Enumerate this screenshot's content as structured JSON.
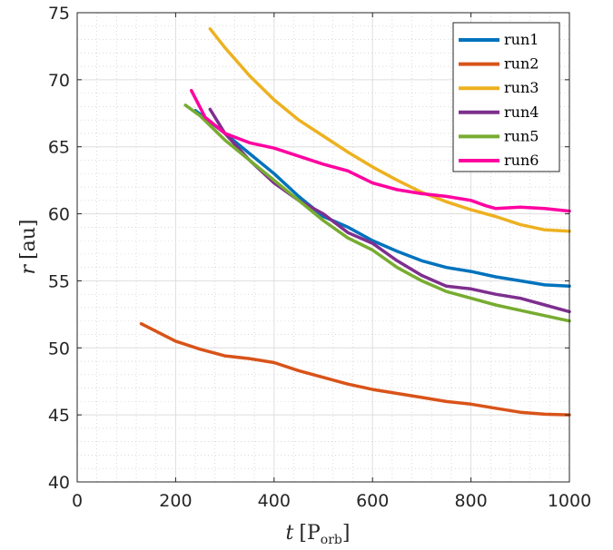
{
  "chart_data": {
    "type": "line",
    "xlabel": {
      "var": "t",
      "unit_main": "P",
      "unit_sub": "orb"
    },
    "ylabel": {
      "var": "r",
      "unit": "au"
    },
    "xlim": [
      0,
      1000
    ],
    "ylim": [
      40,
      75
    ],
    "xticks": [
      0,
      200,
      400,
      600,
      800,
      1000
    ],
    "yticks": [
      40,
      45,
      50,
      55,
      60,
      65,
      70,
      75
    ],
    "grid": "on",
    "minor_grid": "on",
    "legend": "top-right",
    "series": [
      {
        "name": "run1",
        "color": "#0072BD",
        "x": [
          240,
          300,
          350,
          400,
          450,
          500,
          550,
          600,
          650,
          700,
          750,
          800,
          850,
          900,
          950,
          1000
        ],
        "y": [
          67.7,
          66.0,
          64.5,
          63.0,
          61.3,
          59.8,
          59.0,
          58.0,
          57.2,
          56.5,
          56.0,
          55.7,
          55.3,
          55.0,
          54.7,
          54.6
        ]
      },
      {
        "name": "run2",
        "color": "#D95319",
        "x": [
          130,
          200,
          250,
          300,
          350,
          400,
          450,
          500,
          550,
          600,
          650,
          700,
          750,
          800,
          850,
          900,
          950,
          1000
        ],
        "y": [
          51.8,
          50.5,
          49.9,
          49.4,
          49.2,
          48.9,
          48.3,
          47.8,
          47.3,
          46.9,
          46.6,
          46.3,
          46.0,
          45.8,
          45.5,
          45.2,
          45.05,
          45.0
        ]
      },
      {
        "name": "run3",
        "color": "#EDB120",
        "x": [
          270,
          300,
          350,
          400,
          450,
          500,
          550,
          600,
          650,
          700,
          750,
          800,
          850,
          900,
          950,
          1000
        ],
        "y": [
          73.8,
          72.4,
          70.3,
          68.5,
          67.0,
          65.8,
          64.6,
          63.5,
          62.5,
          61.6,
          60.9,
          60.3,
          59.8,
          59.2,
          58.8,
          58.7
        ]
      },
      {
        "name": "run4",
        "color": "#7E2F8E",
        "x": [
          270,
          300,
          350,
          400,
          450,
          500,
          550,
          600,
          650,
          700,
          750,
          800,
          850,
          900,
          950,
          1000
        ],
        "y": [
          67.8,
          66.0,
          64.0,
          62.3,
          61.0,
          60.0,
          58.6,
          57.8,
          56.5,
          55.4,
          54.6,
          54.4,
          54.0,
          53.7,
          53.2,
          52.7
        ]
      },
      {
        "name": "run5",
        "color": "#77AC30",
        "x": [
          220,
          250,
          300,
          350,
          400,
          450,
          500,
          550,
          600,
          650,
          700,
          750,
          800,
          850,
          900,
          950,
          1000
        ],
        "y": [
          68.1,
          67.3,
          65.5,
          64.0,
          62.5,
          61.0,
          59.5,
          58.2,
          57.3,
          56.0,
          55.0,
          54.2,
          53.7,
          53.2,
          52.8,
          52.4,
          52.0
        ]
      },
      {
        "name": "run6",
        "color": "#FF00A0",
        "x": [
          232,
          260,
          300,
          350,
          400,
          450,
          500,
          550,
          600,
          650,
          700,
          750,
          800,
          830,
          850,
          900,
          950,
          1000
        ],
        "y": [
          69.2,
          67.2,
          66.0,
          65.3,
          64.9,
          64.3,
          63.7,
          63.2,
          62.3,
          61.8,
          61.5,
          61.3,
          61.0,
          60.6,
          60.4,
          60.5,
          60.4,
          60.2
        ]
      }
    ]
  }
}
